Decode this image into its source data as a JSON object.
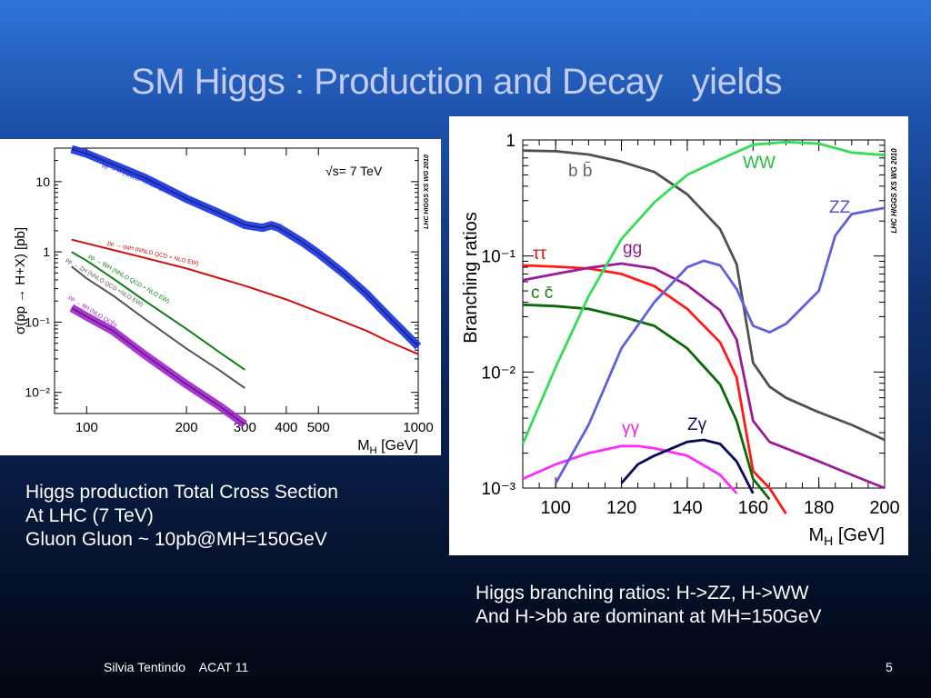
{
  "slide": {
    "title": "SM Higgs : Production and Decay   yields",
    "caption_left": [
      "Higgs production Total Cross Section",
      "At LHC (7 TeV)",
      "Gluon Gluon ~ 10pb@MH=150GeV"
    ],
    "caption_right": [
      "Higgs branching ratios: H->ZZ, H->WW",
      "And H->bb are dominant at MH=150GeV"
    ],
    "footer_left": "Silvia Tentindo    ACAT 11",
    "page_number": "5"
  },
  "chart_data": [
    {
      "type": "line",
      "log_x": true,
      "log_y": true,
      "xlim": [
        80,
        1000
      ],
      "ylim": [
        0.005,
        30
      ],
      "xticks": [
        100,
        200,
        300,
        400,
        500,
        1000
      ],
      "yticks": [
        0.01,
        0.1,
        1,
        10
      ],
      "ytick_labels": [
        "10⁻²",
        "10⁻¹",
        "1",
        "10"
      ],
      "xlabel": "M_H [GeV]",
      "ylabel": "σ(pp → H+X) [pb]",
      "annotation": "√s= 7 TeV",
      "watermark": "LHC HIGGS XS WG 2010",
      "series": [
        {
          "name": "pp → H (NNLO+NNLL QCD + NLO EW)",
          "color": "#1530e0",
          "band": true,
          "x": [
            90,
            100,
            120,
            150,
            200,
            250,
            300,
            340,
            360,
            380,
            400,
            450,
            500,
            600,
            700,
            800,
            1000
          ],
          "y": [
            29,
            25,
            17.5,
            11.3,
            5.7,
            3.6,
            2.42,
            2.2,
            2.4,
            2.2,
            1.9,
            1.35,
            0.95,
            0.48,
            0.25,
            0.13,
            0.045
          ]
        },
        {
          "name": "pp → qqH (NNLO QCD + NLO EW)",
          "color": "#d01010",
          "x": [
            90,
            100,
            150,
            200,
            300,
            400,
            500,
            600,
            700,
            800,
            1000
          ],
          "y": [
            1.5,
            1.32,
            0.82,
            0.58,
            0.33,
            0.21,
            0.14,
            0.1,
            0.075,
            0.055,
            0.035
          ]
        },
        {
          "name": "pp → WH (NNLO QCD + NLO EW)",
          "color": "#108010",
          "x": [
            90,
            100,
            120,
            150,
            200,
            250,
            300
          ],
          "y": [
            1.0,
            0.75,
            0.42,
            0.2,
            0.08,
            0.038,
            0.021
          ]
        },
        {
          "name": "pp → ZH (NNLO QCD +NLO EW)",
          "color": "#555555",
          "x": [
            90,
            100,
            120,
            150,
            200,
            250,
            300
          ],
          "y": [
            0.62,
            0.42,
            0.24,
            0.11,
            0.042,
            0.021,
            0.0115
          ]
        },
        {
          "name": "pp → ttH (NLO QCD)",
          "color": "#a020d0",
          "band": true,
          "x": [
            90,
            100,
            120,
            150,
            200,
            250,
            300
          ],
          "y": [
            0.16,
            0.12,
            0.075,
            0.034,
            0.013,
            0.0065,
            0.0035
          ]
        }
      ]
    },
    {
      "type": "line",
      "log_y": true,
      "xlim": [
        90,
        200
      ],
      "ylim": [
        0.001,
        1
      ],
      "xticks": [
        100,
        120,
        140,
        160,
        180,
        200
      ],
      "yticks": [
        0.001,
        0.01,
        0.1,
        1
      ],
      "ytick_labels": [
        "10⁻³",
        "10⁻²",
        "10⁻¹",
        "1"
      ],
      "xlabel": "M_H [GeV]",
      "ylabel": "Branching ratios",
      "watermark": "LHC HIGGS XS WG 2010",
      "series": [
        {
          "name": "b b̄",
          "color": "#505050",
          "label_color": "#666666",
          "x": [
            90,
            100,
            110,
            120,
            130,
            140,
            150,
            155,
            160,
            165,
            170,
            180,
            190,
            200
          ],
          "y": [
            0.81,
            0.8,
            0.75,
            0.65,
            0.53,
            0.34,
            0.17,
            0.085,
            0.012,
            0.0075,
            0.006,
            0.0045,
            0.0035,
            0.0026
          ]
        },
        {
          "name": "ττ",
          "color": "#ff1a1a",
          "label_color": "#dd1111",
          "x": [
            90,
            100,
            110,
            120,
            130,
            140,
            150,
            155,
            160,
            165,
            170
          ],
          "y": [
            0.083,
            0.081,
            0.078,
            0.07,
            0.055,
            0.035,
            0.018,
            0.009,
            0.0014,
            0.001,
            0.0006
          ]
        },
        {
          "name": "gg",
          "color": "#9a1a9a",
          "label_color": "#882288",
          "x": [
            90,
            100,
            110,
            120,
            130,
            140,
            150,
            155,
            160,
            165,
            170,
            180,
            190,
            200
          ],
          "y": [
            0.062,
            0.07,
            0.079,
            0.086,
            0.078,
            0.056,
            0.034,
            0.019,
            0.0038,
            0.0025,
            0.0022,
            0.0017,
            0.0013,
            0.001
          ]
        },
        {
          "name": "c c̄",
          "color": "#0a6a0a",
          "label_color": "#117711",
          "x": [
            90,
            100,
            110,
            120,
            130,
            140,
            150,
            155,
            160,
            165
          ],
          "y": [
            0.038,
            0.037,
            0.035,
            0.03,
            0.025,
            0.016,
            0.0078,
            0.0038,
            0.0012,
            0.0008
          ]
        },
        {
          "name": "γγ",
          "color": "#ff2aff",
          "label_color": "#ee22ee",
          "x": [
            90,
            100,
            110,
            120,
            125,
            130,
            140,
            150,
            155
          ],
          "y": [
            0.0012,
            0.0016,
            0.002,
            0.0023,
            0.0023,
            0.0022,
            0.0019,
            0.0013,
            0.0009
          ]
        },
        {
          "name": "Zγ",
          "color": "#0a0a5a",
          "label_color": "#111166",
          "x": [
            120,
            125,
            130,
            140,
            145,
            150,
            155,
            160
          ],
          "y": [
            0.0011,
            0.0016,
            0.0019,
            0.0025,
            0.0026,
            0.0024,
            0.0017,
            0.0009
          ]
        },
        {
          "name": "WW",
          "color": "#33dd55",
          "label_color": "#22bb44",
          "x": [
            90,
            100,
            110,
            120,
            130,
            140,
            150,
            160,
            170,
            180,
            190,
            200
          ],
          "y": [
            0.0024,
            0.011,
            0.045,
            0.14,
            0.29,
            0.5,
            0.68,
            0.91,
            0.96,
            0.93,
            0.78,
            0.74
          ]
        },
        {
          "name": "ZZ",
          "color": "#6060dd",
          "label_color": "#5555cc",
          "x": [
            100,
            110,
            120,
            130,
            140,
            145,
            150,
            155,
            160,
            165,
            170,
            180,
            185,
            190,
            200
          ],
          "y": [
            0.0011,
            0.0035,
            0.016,
            0.04,
            0.08,
            0.091,
            0.083,
            0.052,
            0.025,
            0.022,
            0.026,
            0.05,
            0.15,
            0.23,
            0.26
          ]
        }
      ]
    }
  ]
}
